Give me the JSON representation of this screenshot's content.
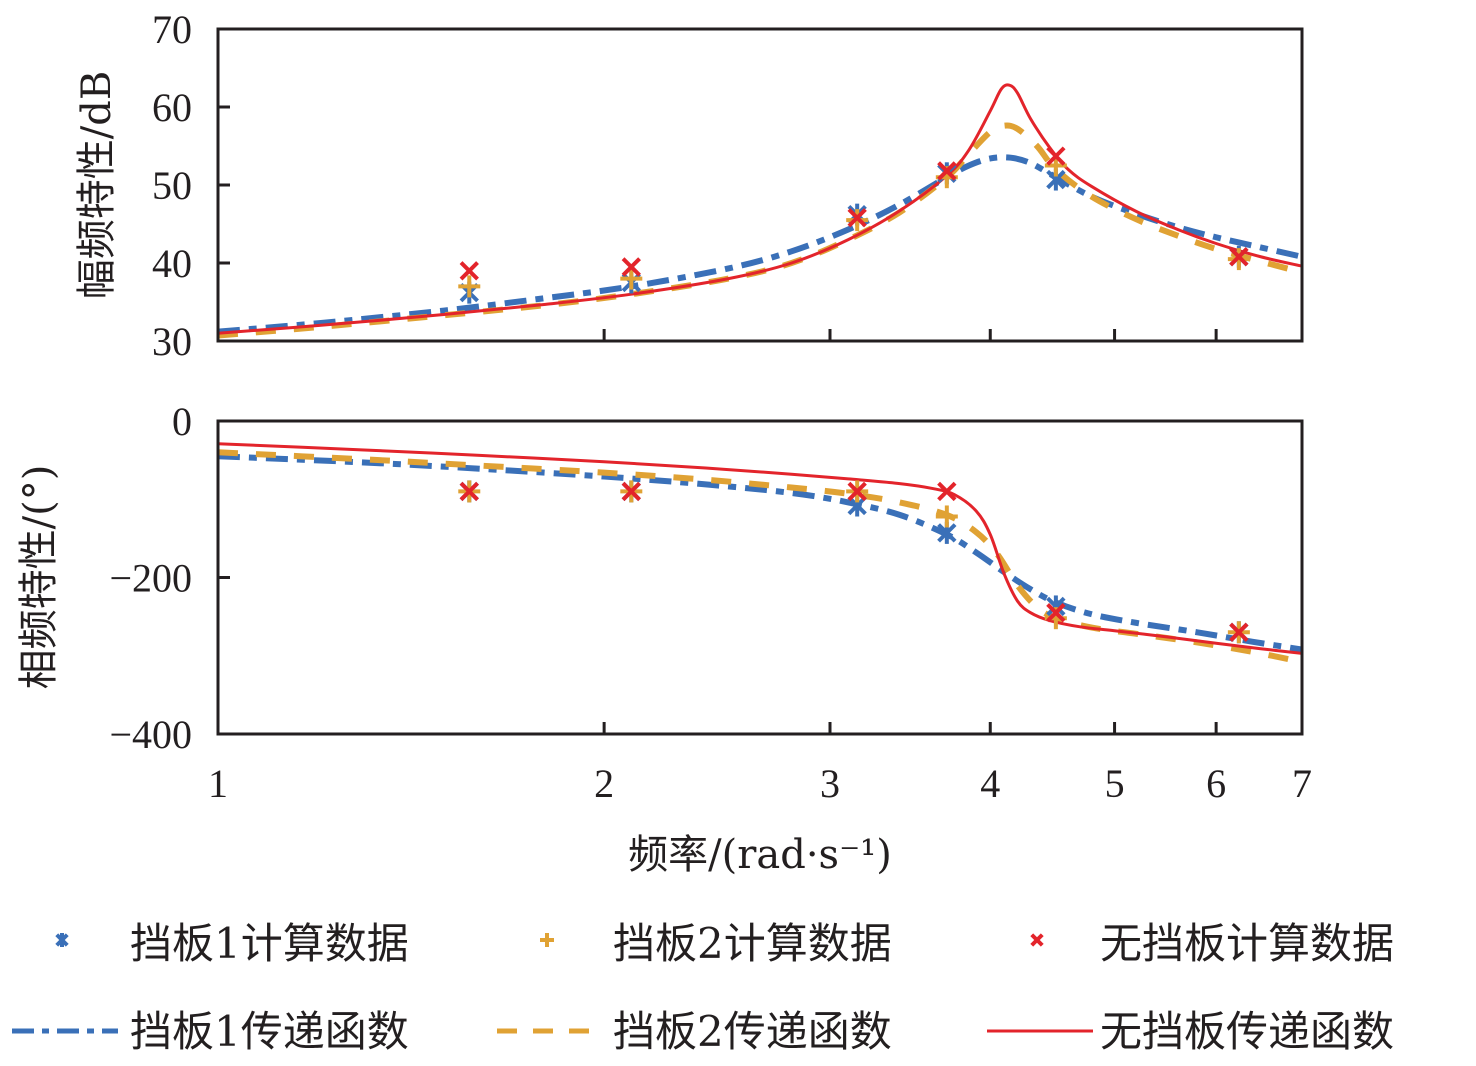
{
  "chart_data": [
    {
      "type": "line",
      "title": "",
      "xlabel": "频率/(rad·s⁻¹)",
      "ylabel": "幅频特性/dB",
      "xscale": "log",
      "xlim": [
        1,
        7
      ],
      "ylim": [
        30,
        70
      ],
      "x_ticks": [
        "1",
        "2",
        "3",
        "4",
        "5",
        "6",
        "7"
      ],
      "y_ticks": [
        "30",
        "40",
        "50",
        "60",
        "70"
      ],
      "grid": false,
      "scatter_series": [
        {
          "name": "挡板1计算数据",
          "marker": "asterisk",
          "color": "#3a70b8",
          "x": [
            1.57,
            2.1,
            3.15,
            3.7,
            4.5,
            6.25
          ],
          "y": [
            36.2,
            37.5,
            46.2,
            51.5,
            50.7,
            40.8
          ]
        },
        {
          "name": "挡板2计算数据",
          "marker": "plus",
          "color": "#e0a234",
          "x": [
            1.57,
            2.1,
            3.15,
            3.7,
            4.5,
            6.25
          ],
          "y": [
            37.0,
            38.0,
            45.5,
            51.0,
            52.5,
            40.5
          ]
        },
        {
          "name": "无挡板计算数据",
          "marker": "x",
          "color": "#e3242b",
          "x": [
            1.57,
            2.1,
            3.15,
            3.7,
            4.5,
            6.25
          ],
          "y": [
            39.0,
            39.5,
            45.8,
            51.8,
            53.7,
            40.8
          ]
        }
      ],
      "line_series": [
        {
          "name": "挡板1传递函数",
          "style": "dash-dot",
          "color": "#3a70b8",
          "x": [
            1,
            1.2,
            1.5,
            1.8,
            2.1,
            2.5,
            2.8,
            3.1,
            3.4,
            3.7,
            3.85,
            4.0,
            4.15,
            4.3,
            4.5,
            4.8,
            5.2,
            5.6,
            6.0,
            6.5,
            7.0
          ],
          "y": [
            31.2,
            32.3,
            33.9,
            35.5,
            37.0,
            39.3,
            41.5,
            44.3,
            47.5,
            51.0,
            52.5,
            53.4,
            53.5,
            52.8,
            51.0,
            48.5,
            46.3,
            44.6,
            43.3,
            42.0,
            40.8
          ]
        },
        {
          "name": "挡板2传递函数",
          "style": "dash",
          "color": "#e0a234",
          "x": [
            1,
            1.2,
            1.5,
            1.8,
            2.1,
            2.5,
            2.8,
            3.1,
            3.4,
            3.7,
            3.85,
            4.0,
            4.1,
            4.2,
            4.35,
            4.5,
            4.8,
            5.2,
            5.6,
            6.0,
            6.5,
            7.0
          ],
          "y": [
            30.7,
            31.8,
            33.3,
            34.6,
            36.0,
            38.0,
            40.0,
            43.0,
            46.5,
            51.0,
            54.0,
            56.8,
            57.6,
            57.2,
            55.0,
            52.0,
            48.5,
            45.6,
            43.5,
            41.8,
            40.2,
            38.8
          ]
        },
        {
          "name": "无挡板传递函数",
          "style": "solid",
          "color": "#e3242b",
          "x": [
            1,
            1.2,
            1.5,
            1.8,
            2.1,
            2.5,
            2.8,
            3.1,
            3.4,
            3.7,
            3.85,
            4.0,
            4.08,
            4.14,
            4.2,
            4.3,
            4.45,
            4.6,
            4.8,
            5.2,
            5.6,
            6.0,
            6.5,
            7.0
          ],
          "y": [
            31.0,
            32.0,
            33.4,
            34.7,
            36.0,
            38.0,
            40.0,
            43.0,
            46.7,
            51.2,
            54.5,
            59.5,
            62.3,
            62.8,
            61.8,
            58.5,
            54.8,
            52.0,
            49.8,
            46.6,
            44.3,
            42.5,
            40.8,
            39.6
          ]
        }
      ]
    },
    {
      "type": "line",
      "title": "",
      "xlabel": "频率/(rad·s⁻¹)",
      "ylabel": "相频特性/(°)",
      "xscale": "log",
      "xlim": [
        1,
        7
      ],
      "ylim": [
        -400,
        0
      ],
      "x_ticks": [
        "1",
        "2",
        "3",
        "4",
        "5",
        "6",
        "7"
      ],
      "y_ticks": [
        "0",
        "−200",
        "−400"
      ],
      "grid": false,
      "scatter_series": [
        {
          "name": "挡板1计算数据",
          "marker": "asterisk",
          "color": "#3a70b8",
          "x": [
            1.57,
            2.1,
            3.15,
            3.7,
            4.5,
            6.25
          ],
          "y": [
            -90,
            -90,
            -108,
            -143,
            -237,
            -270
          ]
        },
        {
          "name": "挡板2计算数据",
          "marker": "plus",
          "color": "#e0a234",
          "x": [
            1.57,
            2.1,
            3.15,
            3.7,
            4.5,
            6.25
          ],
          "y": [
            -90,
            -90,
            -90,
            -122,
            -252,
            -270
          ]
        },
        {
          "name": "无挡板计算数据",
          "marker": "x",
          "color": "#e3242b",
          "x": [
            1.57,
            2.1,
            3.15,
            3.7,
            4.5,
            6.25
          ],
          "y": [
            -90,
            -90,
            -90,
            -90,
            -245,
            -270
          ]
        }
      ],
      "line_series": [
        {
          "name": "挡板1传递函数",
          "style": "dash-dot",
          "color": "#3a70b8",
          "x": [
            1,
            1.3,
            1.6,
            2.0,
            2.4,
            2.8,
            3.1,
            3.4,
            3.7,
            3.9,
            4.1,
            4.3,
            4.5,
            4.8,
            5.2,
            5.8,
            6.4,
            7.0
          ],
          "y": [
            -45,
            -53,
            -61,
            -71,
            -81,
            -92,
            -104,
            -120,
            -145,
            -168,
            -193,
            -215,
            -232,
            -247,
            -258,
            -270,
            -282,
            -292
          ]
        },
        {
          "name": "挡板2传递函数",
          "style": "dash",
          "color": "#e0a234",
          "x": [
            1,
            1.3,
            1.6,
            2.0,
            2.4,
            2.8,
            3.1,
            3.4,
            3.7,
            3.9,
            4.05,
            4.2,
            4.35,
            4.5,
            4.8,
            5.2,
            5.8,
            6.4,
            7.0
          ],
          "y": [
            -40,
            -49,
            -57,
            -66,
            -75,
            -85,
            -93,
            -104,
            -120,
            -142,
            -170,
            -210,
            -238,
            -252,
            -264,
            -272,
            -283,
            -295,
            -308
          ]
        },
        {
          "name": "无挡板传递函数",
          "style": "solid",
          "color": "#e3242b",
          "x": [
            1,
            1.3,
            1.6,
            2.0,
            2.4,
            2.8,
            3.1,
            3.4,
            3.6,
            3.75,
            3.9,
            4.0,
            4.1,
            4.2,
            4.3,
            4.45,
            4.7,
            5.0,
            5.5,
            6.0,
            6.5,
            7.0
          ],
          "y": [
            -29,
            -37,
            -44,
            -52,
            -60,
            -68,
            -74,
            -80,
            -86,
            -94,
            -115,
            -145,
            -195,
            -230,
            -245,
            -255,
            -263,
            -268,
            -276,
            -284,
            -291,
            -297
          ]
        }
      ]
    }
  ],
  "legend": {
    "placement": "bottom",
    "items": [
      {
        "label": "挡板1计算数据",
        "marker": "asterisk",
        "color": "#3a70b8"
      },
      {
        "label": "挡板2计算数据",
        "marker": "plus",
        "color": "#e0a234"
      },
      {
        "label": "无挡板计算数据",
        "marker": "x",
        "color": "#e3242b"
      },
      {
        "label": "挡板1传递函数",
        "style": "dash-dot",
        "color": "#3a70b8"
      },
      {
        "label": "挡板2传递函数",
        "style": "dash",
        "color": "#e0a234"
      },
      {
        "label": "无挡板传递函数",
        "style": "solid",
        "color": "#e3242b"
      }
    ]
  }
}
